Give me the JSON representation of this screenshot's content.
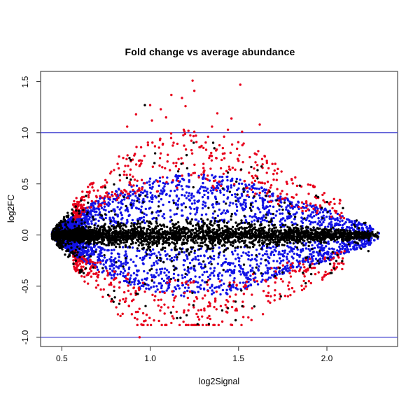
{
  "figure": {
    "background": "#ffffff",
    "box_color": "#3a3a3a",
    "text_color": "#000000"
  },
  "chart_data": {
    "type": "scatter",
    "title": "Fold change vs average abundance",
    "xlabel": "log2Signal",
    "ylabel": "log2FC",
    "x_ticks": [
      0.5,
      1.0,
      1.5,
      2.0
    ],
    "y_ticks": [
      -1.0,
      -0.5,
      0.0,
      0.5,
      1.0,
      1.5
    ],
    "xlim": [
      0.38,
      2.4
    ],
    "ylim": [
      -1.09,
      1.6
    ],
    "grid": false,
    "legend": "none",
    "hlines": [
      {
        "y": 1.0,
        "color": "#4646d2"
      },
      {
        "y": -1.0,
        "color": "#4646d2"
      }
    ],
    "points": {
      "dot_radius": 1.7,
      "description": "MA-plot style scatter: dense black band at log2FC ~ 0, blue points at moderate fold change, red points at strong fold change; funnel shape from x=0.44 to x=2.33 peaking near x=1.2",
      "envelope": {
        "x": [
          0.44,
          0.6,
          0.8,
          1.0,
          1.2,
          1.45,
          1.6,
          1.8,
          2.0,
          2.15,
          2.35
        ],
        "e": [
          0.03,
          0.38,
          0.72,
          0.9,
          0.97,
          0.93,
          0.8,
          0.55,
          0.42,
          0.24,
          0.06
        ]
      },
      "x_distribution": {
        "nose_frac": 0.36,
        "nose_x": 0.445,
        "nose_sd": 0.085,
        "body_min": 0.47,
        "body_span": 1.78,
        "body_pow": 1.55,
        "tail_frac": 0.08,
        "tail_min": 1.25,
        "tail_span": 1.05
      },
      "series": [
        {
          "name": "blue-moderate-fc",
          "color": "#1212e6",
          "count": 3600,
          "shape": "ring",
          "band": [
            0.13,
            0.62
          ],
          "pow": 0.85
        },
        {
          "name": "red-strong-fc",
          "color": "#e8001c",
          "count": 820,
          "shape": "ring",
          "band": [
            0.46,
            1.06
          ],
          "pow": 1.1,
          "min_env": 0.3
        },
        {
          "name": "black-scattered",
          "color": "#000000",
          "count": 500,
          "shape": "ring",
          "band": [
            0.12,
            0.97
          ],
          "pow": 1.4
        },
        {
          "name": "black-core-band",
          "color": "#000000",
          "count": 4200,
          "shape": "core",
          "band": [
            0.0,
            0.18
          ]
        }
      ],
      "outliers": {
        "red_high": [
          [
            1.24,
            1.51
          ],
          [
            1.51,
            1.47
          ],
          [
            1.25,
            1.41
          ],
          [
            1.12,
            1.37
          ],
          [
            1.18,
            1.34
          ],
          [
            1.0,
            1.27
          ],
          [
            1.2,
            1.26
          ],
          [
            1.06,
            1.23
          ],
          [
            1.38,
            1.19
          ],
          [
            0.92,
            1.18
          ],
          [
            1.09,
            1.15
          ],
          [
            1.46,
            1.14
          ],
          [
            1.01,
            1.12
          ],
          [
            1.62,
            1.08
          ],
          [
            0.87,
            1.06
          ],
          [
            1.35,
            1.06
          ],
          [
            1.19,
            1.03
          ],
          [
            1.44,
            1.03
          ],
          [
            1.25,
            1.01
          ],
          [
            1.52,
            1.01
          ]
        ],
        "black_high": [
          [
            0.97,
            1.27
          ]
        ],
        "red_low": [
          [
            0.94,
            -1.0
          ],
          [
            1.05,
            -0.84
          ],
          [
            1.12,
            -0.86
          ],
          [
            1.27,
            -0.8
          ],
          [
            1.34,
            -0.82
          ],
          [
            0.98,
            -0.78
          ]
        ]
      }
    }
  }
}
